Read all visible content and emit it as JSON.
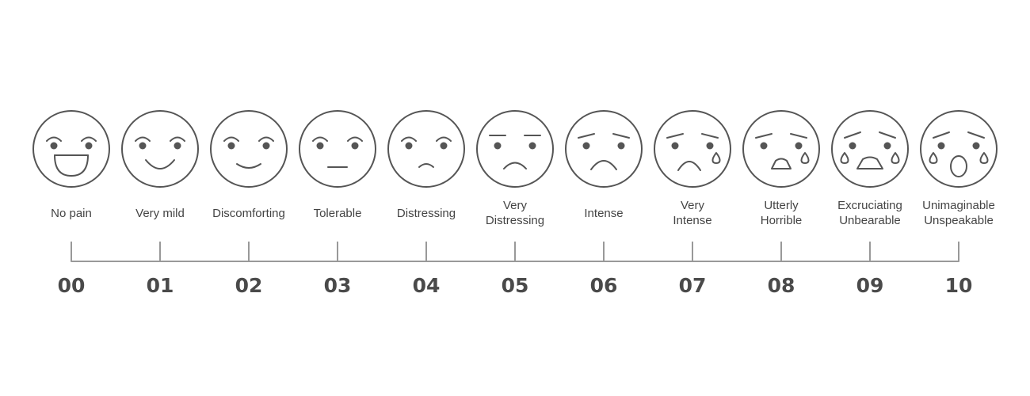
{
  "scale": {
    "items": [
      {
        "label": [
          "No pain"
        ],
        "number": "00"
      },
      {
        "label": [
          "Very mild"
        ],
        "number": "01"
      },
      {
        "label": [
          "Discomforting"
        ],
        "number": "02"
      },
      {
        "label": [
          "Tolerable"
        ],
        "number": "03"
      },
      {
        "label": [
          "Distressing"
        ],
        "number": "04"
      },
      {
        "label": [
          "Very",
          "Distressing"
        ],
        "number": "05"
      },
      {
        "label": [
          "Intense"
        ],
        "number": "06"
      },
      {
        "label": [
          "Very",
          "Intense"
        ],
        "number": "07"
      },
      {
        "label": [
          "Utterly",
          "Horrible"
        ],
        "number": "08"
      },
      {
        "label": [
          "Excruciating",
          "Unbearable"
        ],
        "number": "09"
      },
      {
        "label": [
          "Unimaginable",
          "Unspeakable"
        ],
        "number": "10"
      }
    ]
  }
}
